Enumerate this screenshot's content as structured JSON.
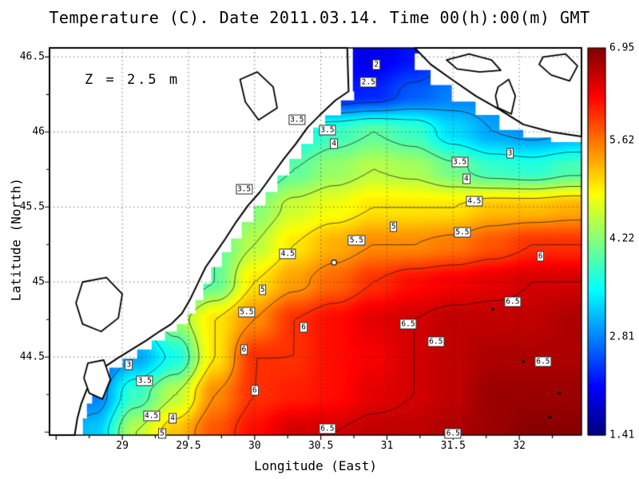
{
  "title": "Temperature (C). Date 2011.03.14. Time 00(h):00(m) GMT",
  "annotation": "Z = 2.5 m",
  "axes": {
    "x_label": "Longitude (East)",
    "y_label": "Latitude (North)",
    "x_ticks": [
      "29",
      "29.5",
      "30",
      "30.5",
      "31",
      "31.5",
      "32"
    ],
    "x_tick_values": [
      29,
      29.5,
      30,
      30.5,
      31,
      31.5,
      32
    ],
    "y_ticks": [
      "44.5",
      "45",
      "45.5",
      "46",
      "46.5"
    ],
    "y_tick_values": [
      44.5,
      45,
      45.5,
      46,
      46.5
    ],
    "lon_range": [
      28.45,
      32.47
    ],
    "lat_range": [
      43.98,
      46.56
    ]
  },
  "colorbar": {
    "labels": [
      "6.95",
      "5.62",
      "4.22",
      "2.81",
      "1.41"
    ],
    "label_values": [
      6.95,
      5.62,
      4.22,
      2.81,
      1.41
    ],
    "min": 1.41,
    "max": 6.95,
    "colormap": "jet"
  },
  "chart_data": {
    "type": "heatmap",
    "title": "Temperature (C). Date 2011.03.14. Time 00(h):00(m) GMT",
    "xlabel": "Longitude (East)",
    "ylabel": "Latitude (North)",
    "units": "deg C",
    "zlim": [
      1.41,
      6.95
    ],
    "lon": [
      28.5,
      28.8,
      29.1,
      29.4,
      29.7,
      30.0,
      30.3,
      30.6,
      30.9,
      31.2,
      31.5,
      31.8,
      32.1,
      32.4
    ],
    "lat": [
      44.0,
      44.25,
      44.5,
      44.75,
      45.0,
      45.25,
      45.5,
      45.75,
      46.0,
      46.25,
      46.5
    ],
    "temperature": [
      [
        2.8,
        3.2,
        4.5,
        5.2,
        5.8,
        6.2,
        6.5,
        6.5,
        6.6,
        6.6,
        6.7,
        6.8,
        6.9,
        6.9
      ],
      [
        2.5,
        2.8,
        3.8,
        4.5,
        5.5,
        6.0,
        6.1,
        6.2,
        6.4,
        6.5,
        6.6,
        6.8,
        6.8,
        6.8
      ],
      [
        2.6,
        2.6,
        3.0,
        3.6,
        5.0,
        6.0,
        6.0,
        6.2,
        6.3,
        6.5,
        6.6,
        6.7,
        6.7,
        6.7
      ],
      [
        2.8,
        2.8,
        3.3,
        4.3,
        5.0,
        5.5,
        6.0,
        6.2,
        6.4,
        6.5,
        6.6,
        6.6,
        6.6,
        6.7
      ],
      [
        3.0,
        3.0,
        3.0,
        3.5,
        4.0,
        5.0,
        5.4,
        5.7,
        6.0,
        6.2,
        6.3,
        6.4,
        6.5,
        6.5
      ],
      [
        3.2,
        3.2,
        3.2,
        3.2,
        4.0,
        4.5,
        5.0,
        5.3,
        5.5,
        5.5,
        5.6,
        5.8,
        6.0,
        6.0
      ],
      [
        3.0,
        3.0,
        3.0,
        3.0,
        3.6,
        4.2,
        4.6,
        4.8,
        5.0,
        5.0,
        5.0,
        5.2,
        5.2,
        5.3
      ],
      [
        3.2,
        3.2,
        3.2,
        3.2,
        3.2,
        3.5,
        4.0,
        4.3,
        4.5,
        4.4,
        4.1,
        3.8,
        3.7,
        3.9
      ],
      [
        3.4,
        3.4,
        3.4,
        3.4,
        3.3,
        3.2,
        3.5,
        3.8,
        4.0,
        3.8,
        3.3,
        3.0,
        2.9,
        3.0
      ],
      [
        3.2,
        3.2,
        3.2,
        3.2,
        3.2,
        3.0,
        2.6,
        2.2,
        2.3,
        2.6,
        2.8,
        2.8,
        2.8,
        2.9
      ],
      [
        3.0,
        3.0,
        3.0,
        3.0,
        3.0,
        2.5,
        2.2,
        2.0,
        2.0,
        2.2,
        2.5,
        2.8,
        3.0,
        3.0
      ]
    ],
    "contour_levels": [
      2,
      2.5,
      3,
      3.5,
      4,
      4.5,
      5,
      5.5,
      6,
      6.5
    ],
    "contour_labels": [
      {
        "v": "2",
        "lon": 30.92,
        "lat": 46.45
      },
      {
        "v": "2.5",
        "lon": 30.86,
        "lat": 46.33
      },
      {
        "v": "3.5",
        "lon": 30.32,
        "lat": 46.08
      },
      {
        "v": "3.5",
        "lon": 30.55,
        "lat": 46.01
      },
      {
        "v": "4",
        "lon": 30.6,
        "lat": 45.92
      },
      {
        "v": "3",
        "lon": 31.93,
        "lat": 45.86
      },
      {
        "v": "3.5",
        "lon": 31.55,
        "lat": 45.8
      },
      {
        "v": "4",
        "lon": 31.6,
        "lat": 45.69
      },
      {
        "v": "4.5",
        "lon": 31.66,
        "lat": 45.54
      },
      {
        "v": "3.5",
        "lon": 29.92,
        "lat": 45.62
      },
      {
        "v": "5",
        "lon": 31.05,
        "lat": 45.37
      },
      {
        "v": "5.5",
        "lon": 30.77,
        "lat": 45.28
      },
      {
        "v": "5.5",
        "lon": 31.57,
        "lat": 45.33
      },
      {
        "v": "4.5",
        "lon": 30.25,
        "lat": 45.19
      },
      {
        "v": "6",
        "lon": 32.16,
        "lat": 45.17
      },
      {
        "v": "5",
        "lon": 30.06,
        "lat": 44.95
      },
      {
        "v": "6.5",
        "lon": 31.95,
        "lat": 44.87
      },
      {
        "v": "5.5",
        "lon": 29.94,
        "lat": 44.8
      },
      {
        "v": "6",
        "lon": 30.37,
        "lat": 44.7
      },
      {
        "v": "6.5",
        "lon": 31.16,
        "lat": 44.72
      },
      {
        "v": "6.5",
        "lon": 31.37,
        "lat": 44.6
      },
      {
        "v": "6.5",
        "lon": 32.18,
        "lat": 44.47
      },
      {
        "v": "3",
        "lon": 29.05,
        "lat": 44.45
      },
      {
        "v": "3.5",
        "lon": 29.17,
        "lat": 44.34
      },
      {
        "v": "6",
        "lon": 29.92,
        "lat": 44.55
      },
      {
        "v": "6",
        "lon": 30.0,
        "lat": 44.28
      },
      {
        "v": "4.5",
        "lon": 29.22,
        "lat": 44.11
      },
      {
        "v": "4",
        "lon": 29.38,
        "lat": 44.09
      },
      {
        "v": "5",
        "lon": 29.3,
        "lat": 43.99
      },
      {
        "v": "6.5",
        "lon": 30.55,
        "lat": 44.02
      },
      {
        "v": "6.5",
        "lon": 31.5,
        "lat": 43.99
      }
    ]
  },
  "map": {
    "land_west": {
      "coast": [
        [
          30.7,
          46.56
        ],
        [
          30.71,
          46.27
        ],
        [
          30.61,
          46.21
        ],
        [
          30.49,
          46.11
        ],
        [
          30.4,
          46.03
        ],
        [
          30.31,
          45.92
        ],
        [
          30.22,
          45.82
        ],
        [
          30.13,
          45.71
        ],
        [
          30.04,
          45.6
        ],
        [
          29.95,
          45.51
        ],
        [
          29.86,
          45.4
        ],
        [
          29.78,
          45.29
        ],
        [
          29.71,
          45.2
        ],
        [
          29.63,
          45.1
        ],
        [
          29.57,
          44.99
        ],
        [
          29.51,
          44.88
        ],
        [
          29.45,
          44.79
        ],
        [
          29.37,
          44.72
        ],
        [
          29.28,
          44.67
        ],
        [
          29.18,
          44.61
        ],
        [
          29.07,
          44.55
        ],
        [
          28.96,
          44.49
        ],
        [
          28.86,
          44.43
        ],
        [
          28.78,
          44.37
        ],
        [
          28.73,
          44.28
        ],
        [
          28.69,
          44.19
        ],
        [
          28.66,
          44.09
        ],
        [
          28.64,
          43.98
        ]
      ],
      "close": [
        [
          28.45,
          43.98
        ],
        [
          28.45,
          46.56
        ]
      ]
    },
    "land_northeast": {
      "coast": [
        [
          31.21,
          46.56
        ],
        [
          31.33,
          46.45
        ],
        [
          31.49,
          46.35
        ],
        [
          31.67,
          46.24
        ],
        [
          31.85,
          46.15
        ],
        [
          32.03,
          46.05
        ],
        [
          32.24,
          46.0
        ],
        [
          32.47,
          45.97
        ]
      ],
      "close": [
        [
          32.47,
          46.56
        ]
      ]
    },
    "lakes": [
      [
        [
          29.89,
          46.35
        ],
        [
          30.02,
          46.4
        ],
        [
          30.14,
          46.3
        ],
        [
          30.17,
          46.16
        ],
        [
          30.03,
          46.08
        ],
        [
          29.93,
          46.2
        ]
      ],
      [
        [
          28.7,
          45.0
        ],
        [
          28.88,
          45.03
        ],
        [
          29.0,
          44.92
        ],
        [
          28.97,
          44.76
        ],
        [
          28.84,
          44.67
        ],
        [
          28.7,
          44.72
        ],
        [
          28.65,
          44.86
        ]
      ],
      [
        [
          28.74,
          44.46
        ],
        [
          28.86,
          44.48
        ],
        [
          28.91,
          44.35
        ],
        [
          28.85,
          44.22
        ],
        [
          28.75,
          44.26
        ],
        [
          28.71,
          44.36
        ]
      ],
      [
        [
          31.45,
          46.48
        ],
        [
          31.62,
          46.52
        ],
        [
          31.79,
          46.48
        ],
        [
          31.86,
          46.41
        ],
        [
          31.7,
          46.4
        ],
        [
          31.53,
          46.42
        ]
      ],
      [
        [
          31.84,
          46.3
        ],
        [
          31.92,
          46.35
        ],
        [
          31.97,
          46.24
        ],
        [
          31.94,
          46.12
        ],
        [
          31.84,
          46.16
        ],
        [
          31.82,
          46.24
        ]
      ],
      [
        [
          32.18,
          46.5
        ],
        [
          32.35,
          46.52
        ],
        [
          32.44,
          46.44
        ],
        [
          32.38,
          46.34
        ],
        [
          32.24,
          46.38
        ],
        [
          32.15,
          46.45
        ]
      ]
    ],
    "islands": [
      [
        32.03,
        44.47
      ],
      [
        32.3,
        44.26
      ],
      [
        32.23,
        44.1
      ],
      [
        31.8,
        44.82
      ]
    ],
    "station_marker": [
      30.6,
      45.13
    ]
  }
}
